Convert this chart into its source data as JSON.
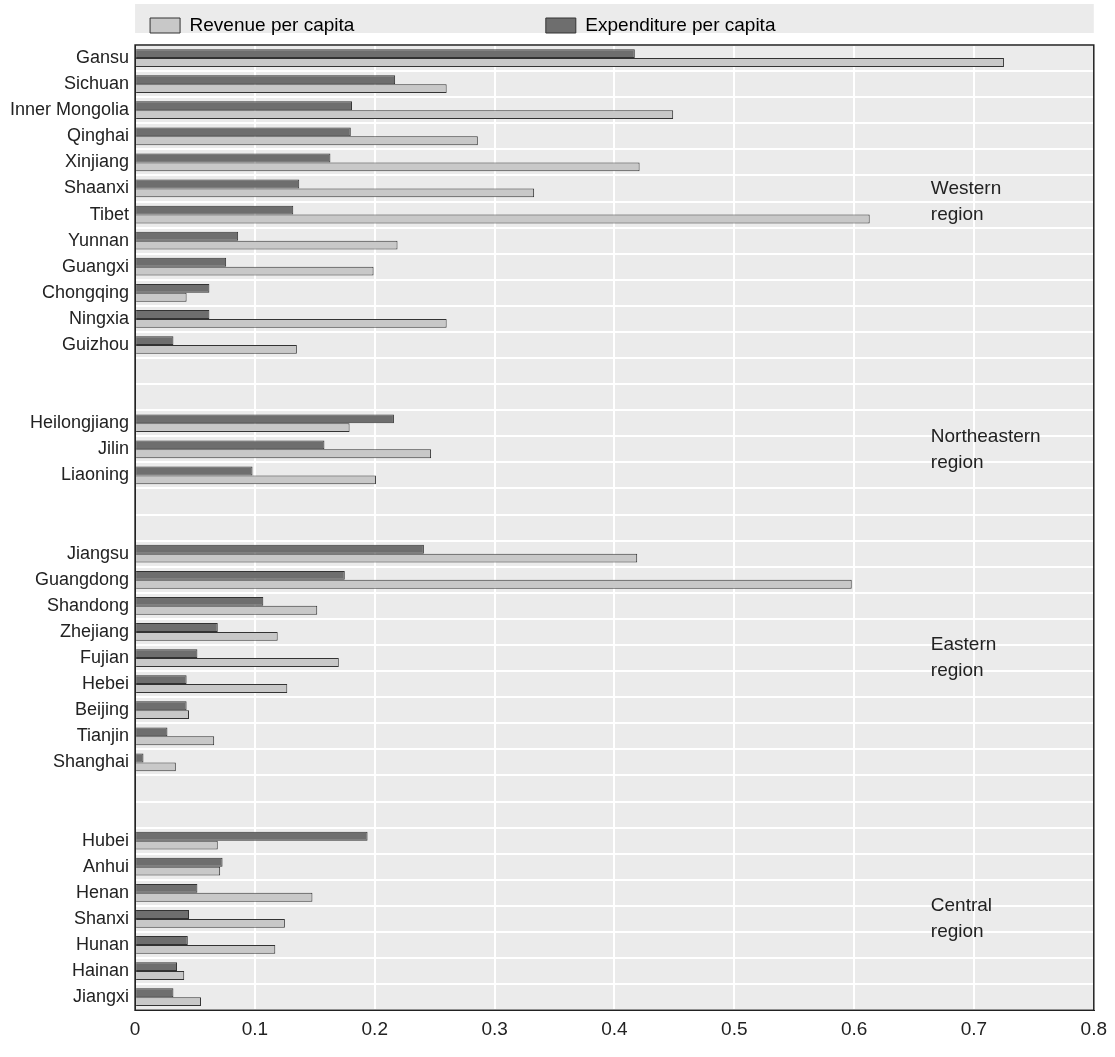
{
  "chart_data": {
    "type": "bar",
    "orientation": "horizontal",
    "legend": "top",
    "grid": true,
    "categories": [
      "Gansu",
      "Sichuan",
      "Inner Mongolia",
      "Qinghai",
      "Xinjiang",
      "Shaanxi",
      "Tibet",
      "Yunnan",
      "Guangxi",
      "Chongqing",
      "Ningxia",
      "Guizhou",
      null,
      null,
      "Heilongjiang",
      "Jilin",
      "Liaoning",
      null,
      null,
      "Jiangsu",
      "Guangdong",
      "Shandong",
      "Zhejiang",
      "Fujian",
      "Hebei",
      "Beijing",
      "Tianjin",
      "Shanghai",
      null,
      null,
      "Hubei",
      "Anhui",
      "Henan",
      "Shanxi",
      "Hunan",
      "Hainan",
      "Jiangxi"
    ],
    "series": [
      {
        "name": "Revenue per capita",
        "color": "#c8c8c8",
        "values": [
          0.725,
          0.26,
          0.449,
          0.286,
          0.421,
          0.333,
          0.613,
          0.219,
          0.199,
          0.043,
          0.26,
          0.135,
          null,
          null,
          0.179,
          0.247,
          0.201,
          null,
          null,
          0.419,
          0.598,
          0.152,
          0.119,
          0.17,
          0.127,
          0.045,
          0.066,
          0.034,
          null,
          null,
          0.069,
          0.071,
          0.148,
          0.125,
          0.117,
          0.041,
          0.055
        ]
      },
      {
        "name": "Expenditure per capita",
        "color": "#6e6e6e",
        "values": [
          0.417,
          0.217,
          0.181,
          0.18,
          0.163,
          0.137,
          0.132,
          0.086,
          0.076,
          0.062,
          0.062,
          0.032,
          null,
          null,
          0.216,
          0.158,
          0.098,
          null,
          null,
          0.241,
          0.175,
          0.107,
          0.069,
          0.052,
          0.043,
          0.043,
          0.027,
          0.007,
          null,
          null,
          0.194,
          0.073,
          0.052,
          0.045,
          0.044,
          0.035,
          0.032
        ]
      }
    ],
    "xlim": [
      0,
      0.8
    ],
    "xticks": [
      0,
      0.1,
      0.2,
      0.3,
      0.4,
      0.5,
      0.6,
      0.7,
      0.8
    ],
    "annotations": [
      "Western region",
      "Northeastern region",
      "Eastern region",
      "Central region"
    ]
  }
}
